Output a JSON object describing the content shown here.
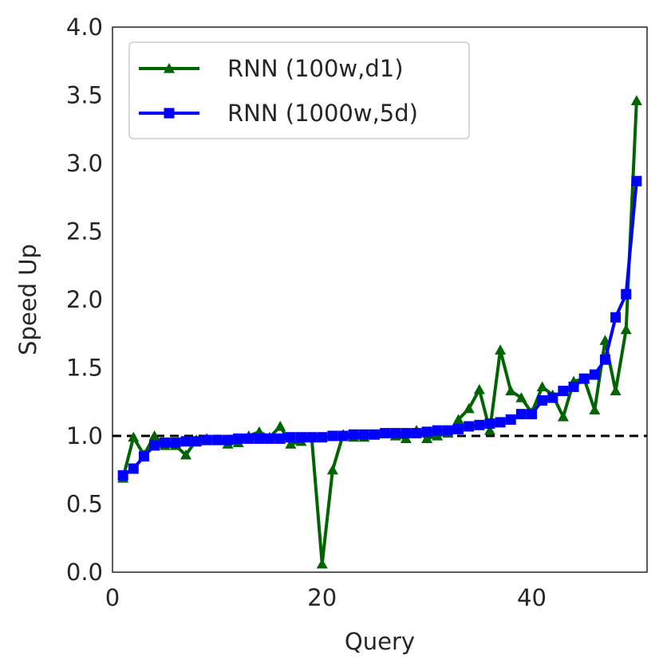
{
  "chart_data": {
    "type": "line",
    "xlabel": "Query",
    "ylabel": "Speed Up",
    "xlim": [
      0,
      51
    ],
    "ylim": [
      0.0,
      4.0
    ],
    "xticks": [
      0,
      20,
      40
    ],
    "xtick_labels": [
      "0",
      "20",
      "40"
    ],
    "yticks": [
      0.0,
      0.5,
      1.0,
      1.5,
      2.0,
      2.5,
      3.0,
      3.5,
      4.0
    ],
    "ytick_labels": [
      "0.0",
      "0.5",
      "1.0",
      "1.5",
      "2.0",
      "2.5",
      "3.0",
      "3.5",
      "4.0"
    ],
    "grid": false,
    "legend_position": "upper-left",
    "reference_line": {
      "y": 1.0,
      "style": "dashed",
      "color": "#000000"
    },
    "x": [
      1,
      2,
      3,
      4,
      5,
      6,
      7,
      8,
      9,
      10,
      11,
      12,
      13,
      14,
      15,
      16,
      17,
      18,
      19,
      20,
      21,
      22,
      23,
      24,
      25,
      26,
      27,
      28,
      29,
      30,
      31,
      32,
      33,
      34,
      35,
      36,
      37,
      38,
      39,
      40,
      41,
      42,
      43,
      44,
      45,
      46,
      47,
      48,
      49,
      50
    ],
    "series": [
      {
        "name": "RNN (100w,d1)",
        "color": "#006400",
        "marker": "triangle",
        "values": [
          0.69,
          0.99,
          0.86,
          1.0,
          0.93,
          0.93,
          0.86,
          0.97,
          0.98,
          0.97,
          0.94,
          0.95,
          1.0,
          1.03,
          0.99,
          1.07,
          0.94,
          0.96,
          0.99,
          0.06,
          0.75,
          1.01,
          0.99,
          0.99,
          1.01,
          1.02,
          1.0,
          0.98,
          1.04,
          0.98,
          1.0,
          1.02,
          1.12,
          1.2,
          1.34,
          1.04,
          1.63,
          1.33,
          1.28,
          1.17,
          1.36,
          1.3,
          1.14,
          1.4,
          1.42,
          1.19,
          1.7,
          1.33,
          1.78,
          3.46
        ]
      },
      {
        "name": "RNN (1000w,5d)",
        "color": "#0000ff",
        "marker": "square",
        "values": [
          0.71,
          0.76,
          0.85,
          0.93,
          0.95,
          0.95,
          0.96,
          0.96,
          0.97,
          0.97,
          0.97,
          0.98,
          0.98,
          0.98,
          0.98,
          0.98,
          0.99,
          0.99,
          0.99,
          0.99,
          1.0,
          1.0,
          1.01,
          1.01,
          1.01,
          1.02,
          1.02,
          1.02,
          1.02,
          1.03,
          1.04,
          1.04,
          1.05,
          1.07,
          1.08,
          1.09,
          1.1,
          1.12,
          1.16,
          1.16,
          1.26,
          1.28,
          1.33,
          1.36,
          1.42,
          1.45,
          1.56,
          1.87,
          2.04,
          2.87
        ]
      }
    ]
  }
}
